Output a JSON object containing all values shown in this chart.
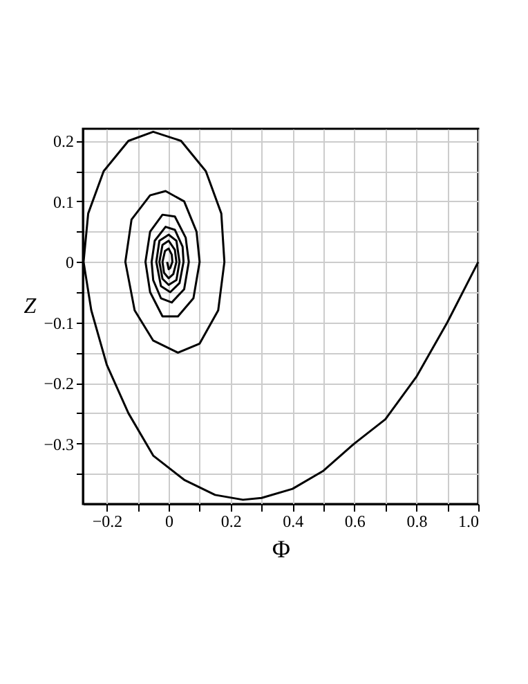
{
  "chart_data": {
    "type": "line",
    "xlabel": "Φ",
    "ylabel": "Z",
    "color": "#000000",
    "grid": true,
    "line_style": "solid",
    "marker": "none",
    "xlim": [
      -0.277,
      1.0
    ],
    "ylim": [
      -0.4,
      0.22
    ],
    "xticks": [
      -0.2,
      {
        "value": -0.1,
        "label": null
      },
      0,
      {
        "value": 0.1,
        "label": null
      },
      0.2,
      {
        "value": 0.3,
        "label": null
      },
      0.4,
      {
        "value": 0.5,
        "label": null
      },
      0.6,
      {
        "value": 0.7,
        "label": null
      },
      0.8,
      {
        "value": 0.9,
        "label": null
      },
      {
        "value": 1.0,
        "label": "1.0"
      }
    ],
    "yticks": [
      {
        "value": -0.35,
        "label": null
      },
      -0.3,
      {
        "value": -0.25,
        "label": null
      },
      -0.2,
      {
        "value": -0.15,
        "label": null
      },
      -0.1,
      {
        "value": -0.05,
        "label": null
      },
      0,
      {
        "value": 0.05,
        "label": null
      },
      0.1,
      {
        "value": 0.15,
        "label": null
      },
      0.2
    ],
    "x": [
      1.0,
      0.9,
      0.8,
      0.7,
      0.6,
      0.5,
      0.4,
      0.3,
      0.24,
      0.15,
      0.05,
      -0.05,
      -0.13,
      -0.2,
      -0.25,
      -0.275,
      -0.26,
      -0.21,
      -0.13,
      -0.05,
      0.04,
      0.12,
      0.17,
      0.18,
      0.16,
      0.1,
      0.03,
      -0.05,
      -0.11,
      -0.14,
      -0.12,
      -0.06,
      -0.01,
      0.05,
      0.09,
      0.1,
      0.08,
      0.03,
      -0.02,
      -0.06,
      -0.075,
      -0.06,
      -0.02,
      0.02,
      0.055,
      0.065,
      0.05,
      0.01,
      -0.025,
      -0.05,
      -0.055,
      -0.045,
      -0.01,
      0.02,
      0.045,
      0.048,
      0.035,
      0.005,
      -0.025,
      -0.04,
      -0.03,
      0.0,
      0.025,
      0.035,
      0.025,
      0.0,
      -0.02,
      -0.03,
      -0.02,
      0.0,
      0.02,
      0.025,
      0.015,
      0.0,
      -0.015,
      -0.02,
      -0.012,
      0.0,
      0.01,
      0.012,
      0.005,
      0.0,
      -0.005
    ],
    "values": [
      0.0,
      -0.1,
      -0.19,
      -0.26,
      -0.3,
      -0.345,
      -0.375,
      -0.39,
      -0.393,
      -0.385,
      -0.36,
      -0.32,
      -0.25,
      -0.17,
      -0.08,
      0.0,
      0.08,
      0.15,
      0.2,
      0.215,
      0.2,
      0.15,
      0.08,
      0.0,
      -0.08,
      -0.135,
      -0.15,
      -0.13,
      -0.08,
      0.0,
      0.07,
      0.11,
      0.117,
      0.1,
      0.05,
      0.0,
      -0.06,
      -0.09,
      -0.09,
      -0.05,
      0.0,
      0.05,
      0.078,
      0.075,
      0.04,
      0.0,
      -0.045,
      -0.067,
      -0.06,
      -0.03,
      0.0,
      0.035,
      0.058,
      0.053,
      0.025,
      0.0,
      -0.035,
      -0.05,
      -0.04,
      0.0,
      0.035,
      0.045,
      0.035,
      0.0,
      -0.03,
      -0.038,
      -0.028,
      0.0,
      0.028,
      0.035,
      0.02,
      0.0,
      -0.02,
      -0.027,
      -0.018,
      0.0,
      0.018,
      0.022,
      0.012,
      0.0,
      -0.01,
      -0.012,
      0.0
    ]
  }
}
